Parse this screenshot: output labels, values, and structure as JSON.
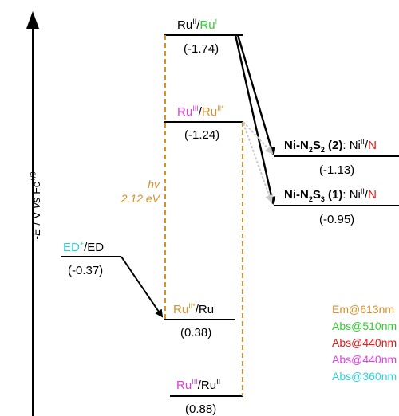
{
  "y_axis": {
    "neg": "-",
    "e": "E",
    "rest": " / V ",
    "vs": "vs",
    "fc": " Fc",
    "fc_sup": "+/0"
  },
  "levels": {
    "ru2_ru1": {
      "a": "Ru",
      "a_sup": "II",
      "sep": "/",
      "b": "Ru",
      "b_sup": "I",
      "value": "(-1.74)"
    },
    "ru3_ru2s": {
      "a": "Ru",
      "a_sup": "III",
      "sep": "/",
      "b": "Ru",
      "b_sup": "II*",
      "value": "(-1.24)"
    },
    "ni2": {
      "name_a": "Ni-N",
      "name_sub1": "2",
      "name_b": "S",
      "name_sub2": "2",
      "name_num": " (2)",
      "colon": ": Ni",
      "ni_sup": "II",
      "slash": "/",
      "cut": "N",
      "value": "(-1.13)"
    },
    "ni1": {
      "name_a": "Ni-N",
      "name_sub1": "2",
      "name_b": "S",
      "name_sub2": "3",
      "name_num": " (1)",
      "colon": ": Ni",
      "ni_sup": "II",
      "slash": "/",
      "cut": "N",
      "value": "(-0.95)"
    },
    "ed": {
      "a": "ED",
      "a_sup": "+",
      "sep": "/ED",
      "value": "(-0.37)"
    },
    "ru2s_ru1": {
      "a": "Ru",
      "a_sup": "II*",
      "sep": "/",
      "b": "Ru",
      "b_sup": "I",
      "value": "(0.38)"
    },
    "ru3_ru2": {
      "a": "Ru",
      "a_sup": "III",
      "sep": "/",
      "b": "Ru",
      "b_sup": "II",
      "value": "(0.88)"
    }
  },
  "excitation": {
    "line1": "hv",
    "line2": "2.12 eV"
  },
  "legend": [
    {
      "text": "Em@613nm",
      "color": "#d8902a"
    },
    {
      "text": "Abs@510nm",
      "color": "#2fd02f"
    },
    {
      "text": "Abs@440nm",
      "color": "#e81919"
    },
    {
      "text": "Abs@440nm",
      "color": "#e23ee0"
    },
    {
      "text": "Abs@360nm",
      "color": "#2bd3d8"
    }
  ],
  "colors": {
    "green": "#2fd02f",
    "magenta": "#e23ee0",
    "orange": "#d8902a",
    "cyan": "#2bd3d8",
    "red": "#e81919"
  }
}
